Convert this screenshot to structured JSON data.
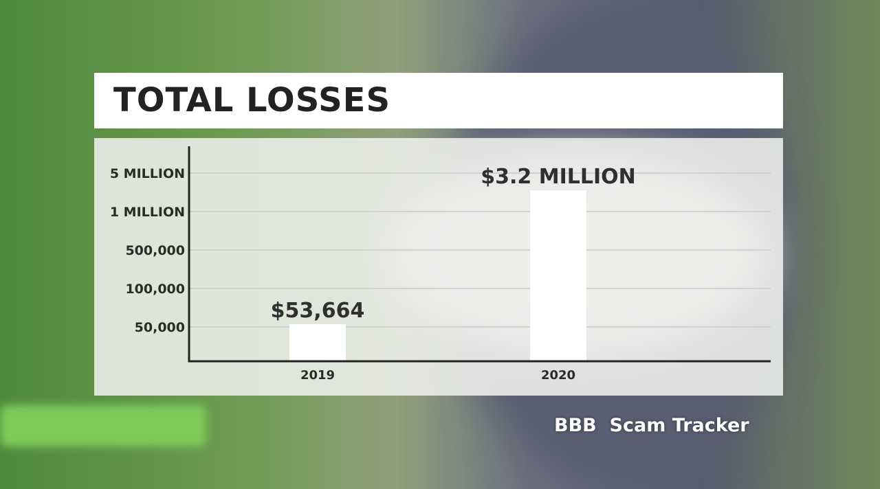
{
  "title": "TOTAL LOSSES",
  "source": "BBB  Scam Tracker",
  "chart_data": {
    "type": "bar",
    "title": "TOTAL LOSSES",
    "categories": [
      "2019",
      "2020"
    ],
    "values": [
      53664,
      3200000
    ],
    "data_labels": [
      "$53,664",
      "$3.2 MILLION"
    ],
    "y_ticks": [
      50000,
      100000,
      500000,
      1000000,
      5000000
    ],
    "y_tick_labels": [
      "50,000",
      "100,000",
      "500,000",
      "1 MILLION",
      "5 MILLION"
    ],
    "y_scale": "non-uniform (evenly spaced ticks)",
    "grid": true,
    "bar_color": "#ffffff",
    "xlabel": "",
    "ylabel": ""
  }
}
